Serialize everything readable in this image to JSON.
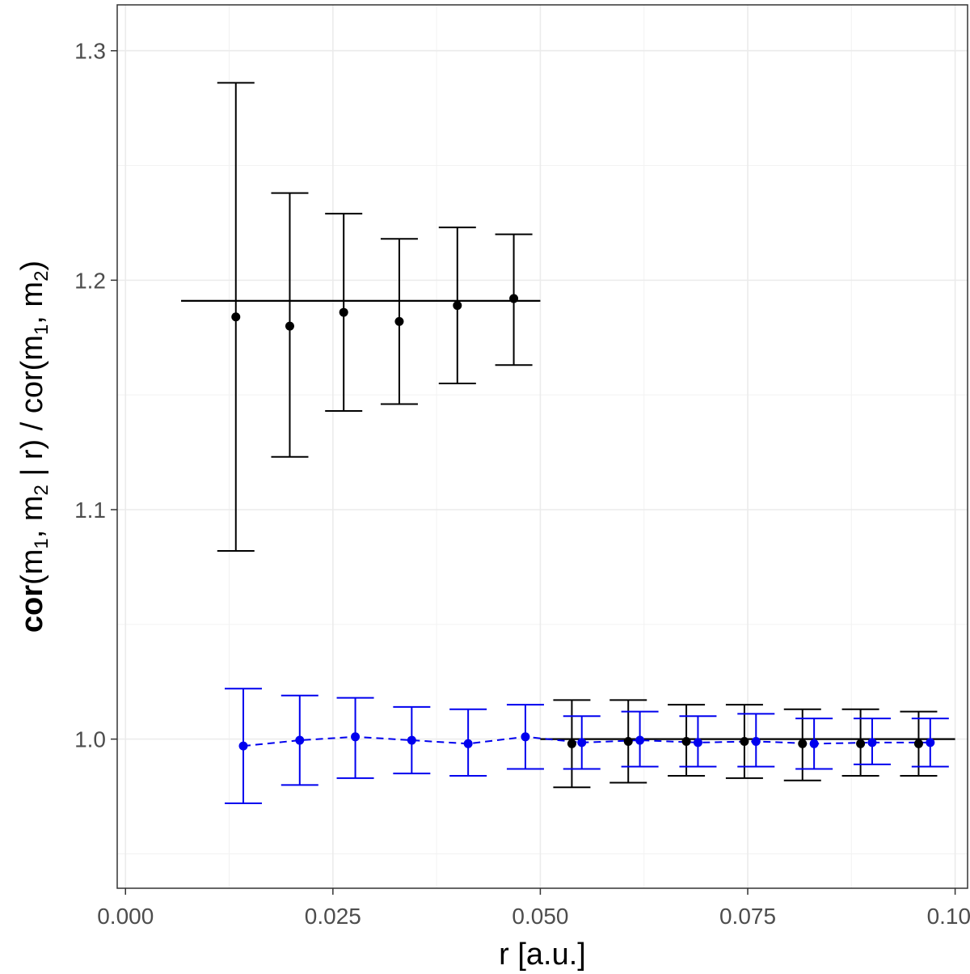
{
  "chart_data": {
    "type": "scatter",
    "xlabel": "r [a.u.]",
    "ylabel_parts": {
      "cor_bold": "cor",
      "num_open": "(m",
      "sub1": "1",
      "mid1": ", m",
      "sub2": "2",
      "mid2": " | r) / cor(m",
      "sub3": "1",
      "mid3": ", m",
      "sub4": "2",
      "close": ")"
    },
    "xlim": [
      -0.001,
      0.1015
    ],
    "ylim": [
      0.935,
      1.32
    ],
    "x_ticks": [
      0.0,
      0.025,
      0.05,
      0.075,
      0.1
    ],
    "x_tick_labels": [
      "0.000",
      "0.025",
      "0.050",
      "0.075",
      "0.100"
    ],
    "y_ticks": [
      1.0,
      1.1,
      1.2,
      1.3
    ],
    "y_tick_labels": [
      "1.0",
      "1.1",
      "1.2",
      "1.3"
    ],
    "grid": true,
    "series": [
      {
        "color": "#000000",
        "points": [
          {
            "x": 0.0133,
            "y": 1.184,
            "ymin": 1.082,
            "ymax": 1.286
          },
          {
            "x": 0.0198,
            "y": 1.18,
            "ymin": 1.123,
            "ymax": 1.238
          },
          {
            "x": 0.0263,
            "y": 1.186,
            "ymin": 1.143,
            "ymax": 1.229
          },
          {
            "x": 0.033,
            "y": 1.182,
            "ymin": 1.146,
            "ymax": 1.218
          },
          {
            "x": 0.04,
            "y": 1.189,
            "ymin": 1.155,
            "ymax": 1.223
          },
          {
            "x": 0.0468,
            "y": 1.192,
            "ymin": 1.163,
            "ymax": 1.22
          },
          {
            "x": 0.0538,
            "y": 0.998,
            "ymin": 0.979,
            "ymax": 1.017
          },
          {
            "x": 0.0606,
            "y": 0.999,
            "ymin": 0.981,
            "ymax": 1.017
          },
          {
            "x": 0.0676,
            "y": 0.999,
            "ymin": 0.984,
            "ymax": 1.015
          },
          {
            "x": 0.0746,
            "y": 0.999,
            "ymin": 0.983,
            "ymax": 1.015
          },
          {
            "x": 0.0816,
            "y": 0.998,
            "ymin": 0.982,
            "ymax": 1.013
          },
          {
            "x": 0.0886,
            "y": 0.998,
            "ymin": 0.984,
            "ymax": 1.013
          },
          {
            "x": 0.0956,
            "y": 0.998,
            "ymin": 0.984,
            "ymax": 1.012
          }
        ],
        "hlines": [
          {
            "y": 1.191,
            "x_start": 0.0067,
            "x_end": 0.05
          },
          {
            "y": 1.0,
            "x_start": 0.05,
            "x_end": 0.1
          }
        ]
      },
      {
        "color": "#0000ee",
        "connect_dashed": true,
        "points": [
          {
            "x": 0.0142,
            "y": 0.997,
            "ymin": 0.972,
            "ymax": 1.022
          },
          {
            "x": 0.021,
            "y": 0.9995,
            "ymin": 0.98,
            "ymax": 1.019
          },
          {
            "x": 0.0277,
            "y": 1.001,
            "ymin": 0.983,
            "ymax": 1.018
          },
          {
            "x": 0.0345,
            "y": 0.9995,
            "ymin": 0.985,
            "ymax": 1.014
          },
          {
            "x": 0.0413,
            "y": 0.998,
            "ymin": 0.984,
            "ymax": 1.013
          },
          {
            "x": 0.0482,
            "y": 1.001,
            "ymin": 0.987,
            "ymax": 1.015
          },
          {
            "x": 0.055,
            "y": 0.9985,
            "ymin": 0.987,
            "ymax": 1.01
          },
          {
            "x": 0.062,
            "y": 0.9995,
            "ymin": 0.988,
            "ymax": 1.012
          },
          {
            "x": 0.069,
            "y": 0.9985,
            "ymin": 0.988,
            "ymax": 1.01
          },
          {
            "x": 0.076,
            "y": 0.999,
            "ymin": 0.988,
            "ymax": 1.011
          },
          {
            "x": 0.083,
            "y": 0.998,
            "ymin": 0.987,
            "ymax": 1.009
          },
          {
            "x": 0.09,
            "y": 0.9985,
            "ymin": 0.989,
            "ymax": 1.009
          },
          {
            "x": 0.097,
            "y": 0.9985,
            "ymin": 0.988,
            "ymax": 1.009
          }
        ]
      }
    ]
  }
}
